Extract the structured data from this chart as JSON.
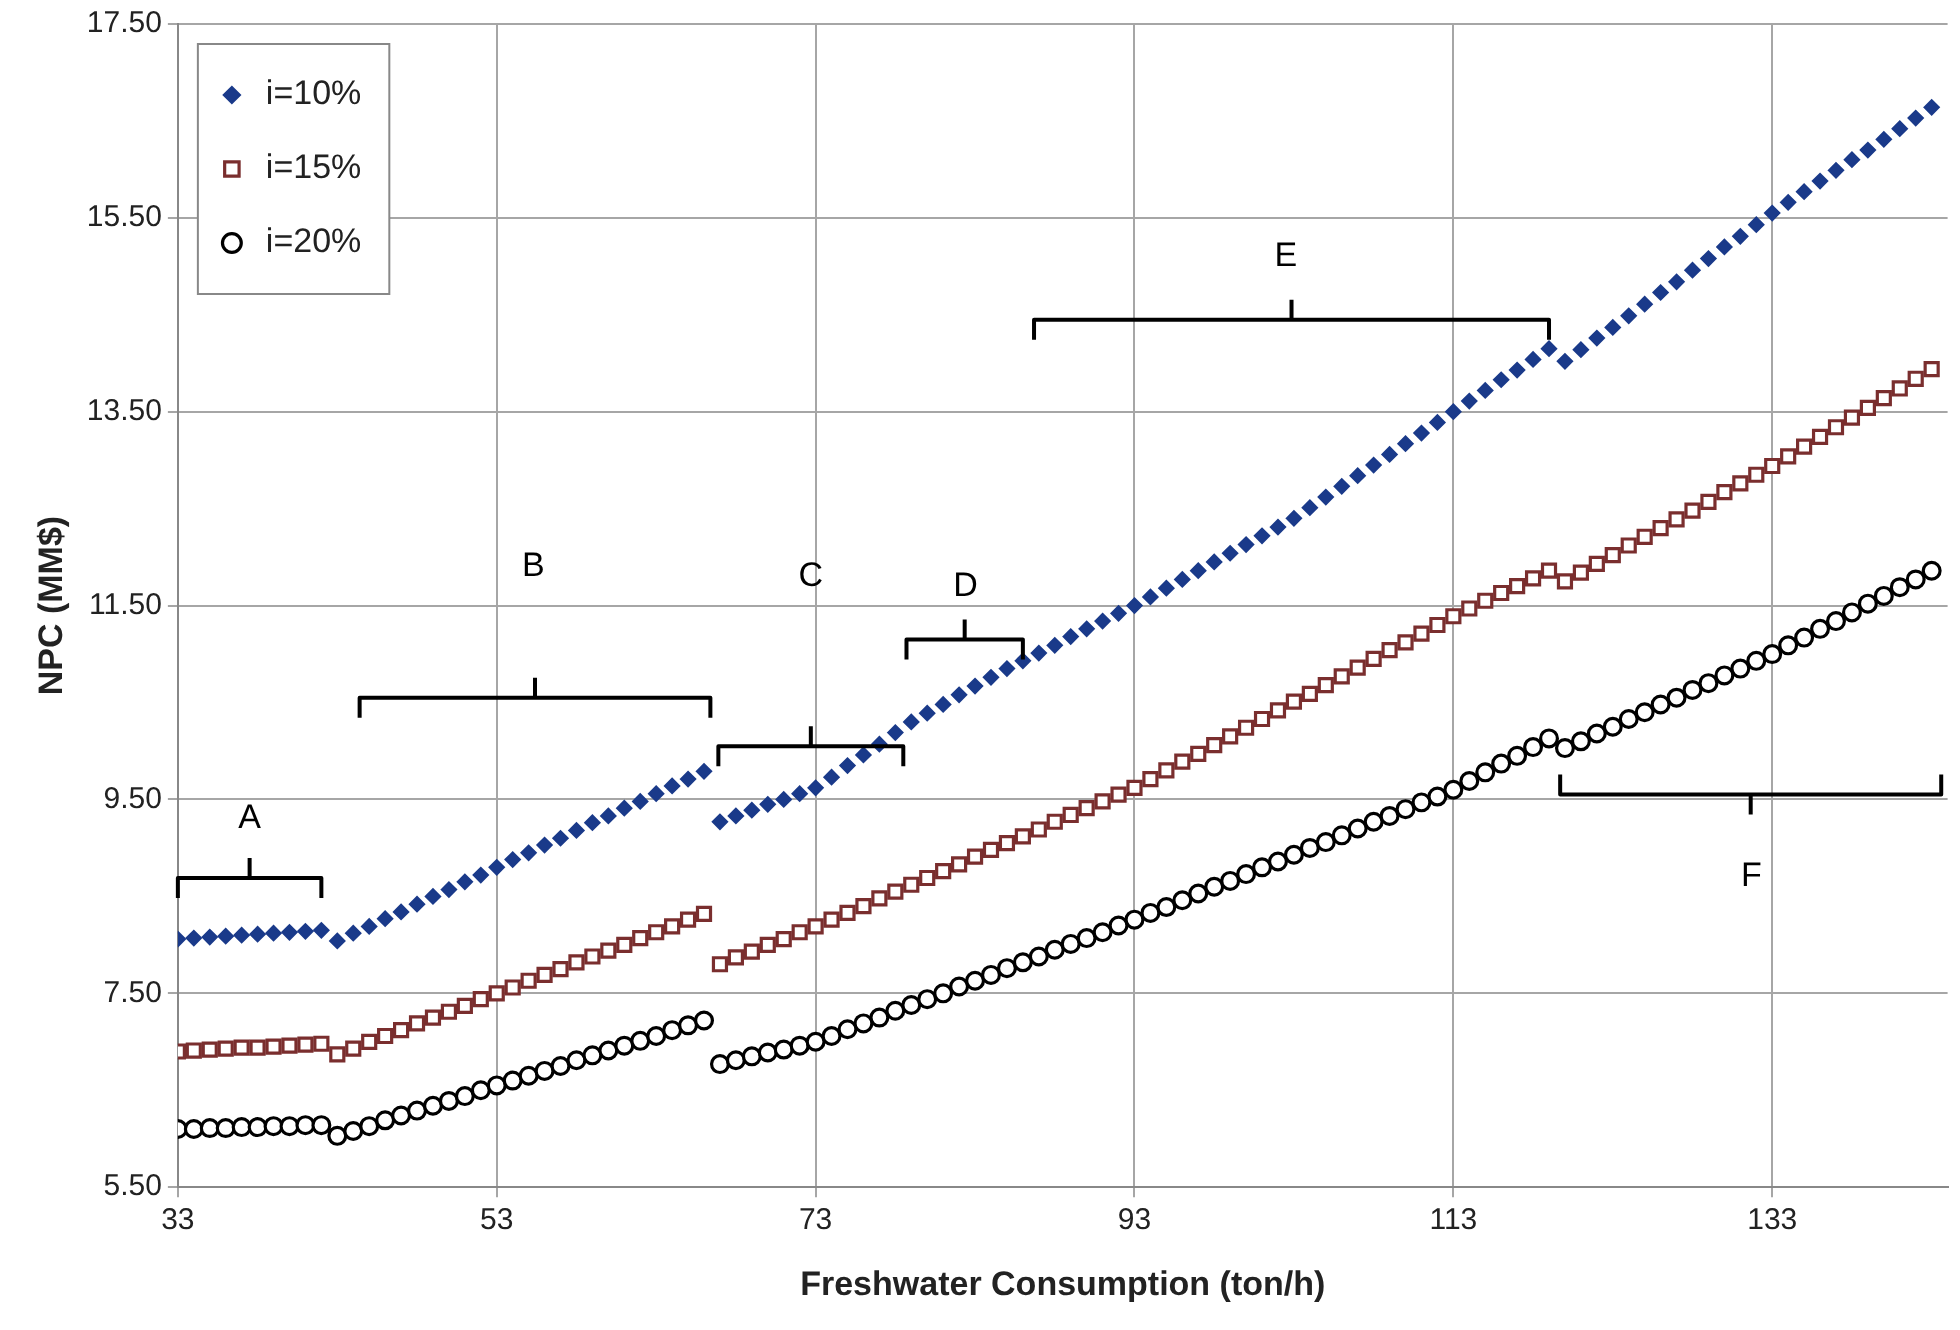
{
  "chart_data": {
    "type": "scatter",
    "xlabel": "Freshwater Consumption (ton/h)",
    "ylabel": "NPC (MM$)",
    "x": [
      33,
      34,
      35,
      36,
      37,
      38,
      39,
      40,
      41,
      42,
      43,
      44,
      45,
      46,
      47,
      48,
      49,
      50,
      51,
      52,
      53,
      54,
      55,
      56,
      57,
      58,
      59,
      60,
      61,
      62,
      63,
      64,
      65,
      66,
      67,
      68,
      69,
      70,
      71,
      72,
      73,
      74,
      75,
      76,
      77,
      78,
      79,
      80,
      81,
      82,
      83,
      84,
      85,
      86,
      87,
      88,
      89,
      90,
      91,
      92,
      93,
      94,
      95,
      96,
      97,
      98,
      99,
      100,
      101,
      102,
      103,
      104,
      105,
      106,
      107,
      108,
      109,
      110,
      111,
      112,
      113,
      114,
      115,
      116,
      117,
      118,
      119,
      120,
      121,
      122,
      123,
      124,
      125,
      126,
      127,
      128,
      129,
      130,
      131,
      132,
      133,
      134,
      135,
      136,
      137,
      138,
      139,
      140,
      141,
      142,
      143
    ],
    "series": [
      {
        "name": "i=10%",
        "color": "#1a3a8a",
        "marker": "diamond",
        "values": [
          8.06,
          8.07,
          8.08,
          8.09,
          8.1,
          8.11,
          8.12,
          8.13,
          8.14,
          8.15,
          8.04,
          8.12,
          8.19,
          8.27,
          8.34,
          8.42,
          8.5,
          8.57,
          8.65,
          8.72,
          8.8,
          8.88,
          8.95,
          9.03,
          9.1,
          9.18,
          9.26,
          9.33,
          9.41,
          9.48,
          9.56,
          9.64,
          9.71,
          9.79,
          9.27,
          9.33,
          9.39,
          9.45,
          9.5,
          9.56,
          9.62,
          9.73,
          9.85,
          9.96,
          10.07,
          10.19,
          10.3,
          10.39,
          10.48,
          10.58,
          10.67,
          10.76,
          10.85,
          10.93,
          11.01,
          11.09,
          11.18,
          11.26,
          11.34,
          11.42,
          11.5,
          11.59,
          11.68,
          11.77,
          11.86,
          11.95,
          12.04,
          12.13,
          12.22,
          12.31,
          12.4,
          12.51,
          12.62,
          12.73,
          12.84,
          12.95,
          13.06,
          13.17,
          13.28,
          13.39,
          13.5,
          13.61,
          13.72,
          13.83,
          13.93,
          14.04,
          14.15,
          14.02,
          14.14,
          14.26,
          14.37,
          14.49,
          14.61,
          14.73,
          14.84,
          14.96,
          15.08,
          15.2,
          15.31,
          15.43,
          15.55,
          15.66,
          15.77,
          15.88,
          15.99,
          16.1,
          16.2,
          16.31,
          16.42,
          16.53,
          16.64
        ]
      },
      {
        "name": "i=15%",
        "color": "#7a2e2e",
        "marker": "square",
        "values": [
          6.9,
          6.91,
          6.92,
          6.93,
          6.94,
          6.94,
          6.95,
          6.96,
          6.97,
          6.98,
          6.87,
          6.93,
          7.0,
          7.06,
          7.12,
          7.19,
          7.25,
          7.31,
          7.37,
          7.44,
          7.5,
          7.56,
          7.63,
          7.69,
          7.75,
          7.82,
          7.88,
          7.94,
          8.0,
          8.07,
          8.13,
          8.19,
          8.26,
          8.32,
          7.8,
          7.87,
          7.93,
          8.0,
          8.06,
          8.13,
          8.19,
          8.26,
          8.33,
          8.4,
          8.48,
          8.55,
          8.62,
          8.69,
          8.76,
          8.83,
          8.91,
          8.98,
          9.05,
          9.12,
          9.19,
          9.27,
          9.34,
          9.41,
          9.48,
          9.55,
          9.62,
          9.71,
          9.8,
          9.89,
          9.97,
          10.06,
          10.15,
          10.24,
          10.33,
          10.42,
          10.51,
          10.59,
          10.68,
          10.77,
          10.86,
          10.95,
          11.04,
          11.12,
          11.21,
          11.3,
          11.39,
          11.47,
          11.55,
          11.63,
          11.7,
          11.78,
          11.86,
          11.75,
          11.84,
          11.93,
          12.02,
          12.12,
          12.21,
          12.3,
          12.39,
          12.48,
          12.57,
          12.67,
          12.76,
          12.85,
          12.94,
          13.04,
          13.14,
          13.24,
          13.34,
          13.44,
          13.54,
          13.64,
          13.74,
          13.84,
          13.94
        ]
      },
      {
        "name": "i=20%",
        "color": "#000000",
        "marker": "circle",
        "values": [
          6.1,
          6.1,
          6.11,
          6.11,
          6.12,
          6.12,
          6.13,
          6.13,
          6.14,
          6.14,
          6.03,
          6.08,
          6.13,
          6.19,
          6.24,
          6.29,
          6.34,
          6.39,
          6.44,
          6.5,
          6.55,
          6.6,
          6.65,
          6.7,
          6.75,
          6.81,
          6.86,
          6.91,
          6.96,
          7.01,
          7.06,
          7.12,
          7.17,
          7.22,
          6.77,
          6.81,
          6.85,
          6.89,
          6.92,
          6.96,
          7.0,
          7.06,
          7.13,
          7.19,
          7.25,
          7.32,
          7.38,
          7.44,
          7.5,
          7.57,
          7.63,
          7.69,
          7.76,
          7.82,
          7.88,
          7.95,
          8.01,
          8.07,
          8.13,
          8.2,
          8.26,
          8.33,
          8.39,
          8.46,
          8.53,
          8.6,
          8.66,
          8.73,
          8.8,
          8.86,
          8.93,
          9.0,
          9.06,
          9.13,
          9.2,
          9.27,
          9.33,
          9.4,
          9.47,
          9.53,
          9.6,
          9.69,
          9.78,
          9.87,
          9.95,
          10.04,
          10.13,
          10.03,
          10.1,
          10.18,
          10.25,
          10.33,
          10.4,
          10.48,
          10.55,
          10.63,
          10.7,
          10.78,
          10.85,
          10.93,
          11.0,
          11.09,
          11.17,
          11.26,
          11.34,
          11.43,
          11.52,
          11.6,
          11.69,
          11.77,
          11.86
        ]
      }
    ],
    "xlim": [
      33,
      144
    ],
    "xticks": [
      33,
      53,
      73,
      93,
      113,
      133
    ],
    "ylim": [
      5.5,
      17.5
    ],
    "yticks": [
      {
        "value": 5.5,
        "label": "5.50"
      },
      {
        "value": 7.5,
        "label": "7.50"
      },
      {
        "value": 9.5,
        "label": "9.50"
      },
      {
        "value": 11.5,
        "label": "11.50"
      },
      {
        "value": 13.5,
        "label": "13.50"
      },
      {
        "value": 15.5,
        "label": "15.50"
      },
      {
        "value": 17.5,
        "label": "17.50"
      }
    ],
    "annotations": [
      "A",
      "B",
      "C",
      "D",
      "E",
      "F"
    ],
    "grid": true,
    "legend": "top left"
  }
}
